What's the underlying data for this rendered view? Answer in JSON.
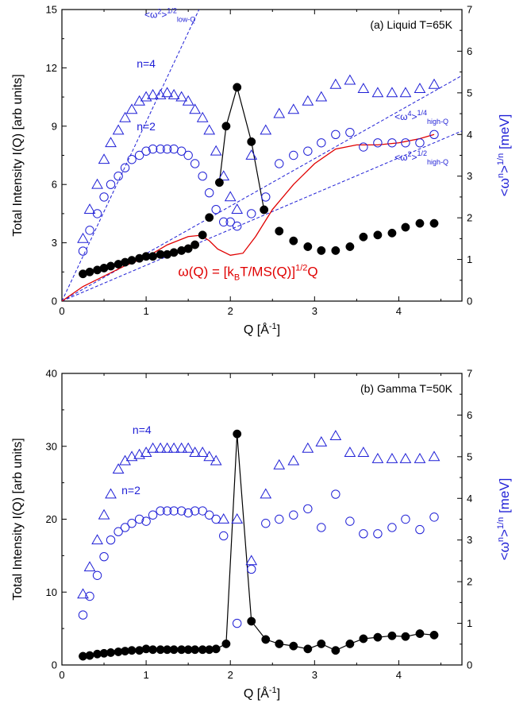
{
  "colors": {
    "black": "#000000",
    "blue": "#1f1fd6",
    "red": "#e00000"
  },
  "chart_data": [
    {
      "type": "scatter",
      "panel_label": "(a) Liquid T=65K",
      "xlabel": "Q [Å",
      "xlabel_sup": "-1",
      "xlabel_end": "]",
      "ylabel_left": "Total Intensity I(Q) [arb units]",
      "ylabel_right": {
        "pre": "<ω",
        "sup1": "n",
        "mid": ">",
        "sup2": "1/n",
        "post": "  [meV]"
      },
      "xlim": [
        0,
        4.75
      ],
      "ylim_left": [
        0,
        15
      ],
      "ylim_right": [
        0,
        7
      ],
      "xticks": [
        "0",
        "1",
        "2",
        "3",
        "4"
      ],
      "yticks_left": [
        "0",
        "3",
        "6",
        "9",
        "12",
        "15"
      ],
      "yticks_right": [
        "0",
        "1",
        "2",
        "3",
        "4",
        "5",
        "6",
        "7"
      ],
      "annotations": {
        "n4": "n=4",
        "n2": "n=2",
        "lowq": {
          "base": "<ω",
          "sup1": "2",
          "mid": ">",
          "sup2": "1/2",
          "sub": "low-Q"
        },
        "high4": {
          "base": "<ω",
          "sup1": "4",
          "mid": ">",
          "sup2": "1/4",
          "sub": "high-Q"
        },
        "high2": {
          "base": "<ω",
          "sup1": "2",
          "mid": ">",
          "sup2": "1/2",
          "sub": "high-Q"
        },
        "formula": {
          "a": "ω(Q) = [k",
          "sub": "B",
          "b": "T/MS(Q)]",
          "sup": "1/2",
          "c": "Q"
        }
      },
      "intensity": {
        "x": [
          0.25,
          0.33,
          0.42,
          0.5,
          0.58,
          0.67,
          0.75,
          0.83,
          0.92,
          1.0,
          1.08,
          1.17,
          1.25,
          1.33,
          1.42,
          1.5,
          1.58,
          1.67,
          1.75,
          1.87,
          1.95,
          2.08,
          2.25,
          2.4,
          2.58,
          2.75,
          2.92,
          3.08,
          3.25,
          3.42,
          3.58,
          3.75,
          3.92,
          4.08,
          4.25,
          4.42
        ],
        "y": [
          1.4,
          1.5,
          1.6,
          1.7,
          1.8,
          1.9,
          2.0,
          2.1,
          2.2,
          2.3,
          2.3,
          2.4,
          2.4,
          2.5,
          2.6,
          2.7,
          2.9,
          3.4,
          4.3,
          6.1,
          9.0,
          11.0,
          8.2,
          4.7,
          3.6,
          3.1,
          2.8,
          2.6,
          2.6,
          2.8,
          3.3,
          3.4,
          3.5,
          3.8,
          4.0,
          4.0
        ]
      },
      "n4": {
        "x": [
          0.25,
          0.33,
          0.42,
          0.5,
          0.58,
          0.67,
          0.75,
          0.83,
          0.92,
          1.0,
          1.08,
          1.17,
          1.25,
          1.33,
          1.42,
          1.5,
          1.58,
          1.67,
          1.75,
          1.83,
          1.92,
          2.0,
          2.08,
          2.25,
          2.42,
          2.58,
          2.75,
          2.92,
          3.08,
          3.25,
          3.42,
          3.58,
          3.75,
          3.92,
          4.08,
          4.25,
          4.42
        ],
        "y": [
          1.5,
          2.2,
          2.8,
          3.4,
          3.8,
          4.1,
          4.4,
          4.6,
          4.8,
          4.9,
          4.95,
          4.95,
          5.0,
          4.95,
          4.9,
          4.8,
          4.6,
          4.4,
          4.1,
          3.6,
          3.0,
          2.5,
          2.2,
          3.5,
          4.1,
          4.5,
          4.6,
          4.8,
          4.9,
          5.2,
          5.3,
          5.1,
          5.0,
          5.0,
          5.0,
          5.1,
          5.2
        ]
      },
      "n2": {
        "x": [
          0.25,
          0.33,
          0.42,
          0.5,
          0.58,
          0.67,
          0.75,
          0.83,
          0.92,
          1.0,
          1.08,
          1.17,
          1.25,
          1.33,
          1.42,
          1.5,
          1.58,
          1.67,
          1.75,
          1.83,
          1.92,
          2.0,
          2.08,
          2.25,
          2.42,
          2.58,
          2.75,
          2.92,
          3.08,
          3.25,
          3.42,
          3.58,
          3.75,
          3.92,
          4.08,
          4.25,
          4.42
        ],
        "y": [
          1.2,
          1.7,
          2.1,
          2.5,
          2.8,
          3.0,
          3.2,
          3.4,
          3.5,
          3.6,
          3.65,
          3.65,
          3.65,
          3.65,
          3.6,
          3.5,
          3.3,
          3.0,
          2.6,
          2.2,
          1.9,
          1.9,
          1.8,
          2.1,
          2.5,
          3.3,
          3.5,
          3.6,
          3.8,
          4.0,
          4.05,
          3.7,
          3.8,
          3.8,
          3.8,
          3.8,
          4.0
        ]
      },
      "guide_lines": [
        {
          "name": "low-Q",
          "slope_meV_per_invA": 4.3
        },
        {
          "name": "high-Q n=4",
          "slope_meV_per_invA": 1.14
        },
        {
          "name": "high-Q n=2",
          "slope_meV_per_invA": 0.86
        }
      ],
      "curve_red": {
        "x": [
          0.0,
          0.25,
          0.5,
          0.75,
          1.0,
          1.25,
          1.5,
          1.65,
          1.75,
          1.85,
          2.0,
          2.15,
          2.3,
          2.5,
          2.75,
          3.0,
          3.25,
          3.5,
          3.75,
          4.0,
          4.25,
          4.42
        ],
        "y": [
          0.0,
          0.35,
          0.6,
          0.85,
          1.05,
          1.35,
          1.55,
          1.58,
          1.45,
          1.25,
          1.1,
          1.15,
          1.55,
          2.2,
          2.8,
          3.3,
          3.65,
          3.75,
          3.75,
          3.8,
          3.9,
          4.0
        ]
      }
    },
    {
      "type": "scatter",
      "panel_label": "(b) Gamma T=50K",
      "xlabel": "Q [Å",
      "xlabel_sup": "-1",
      "xlabel_end": "]",
      "ylabel_left": "Total Intensity I(Q) [arb units]",
      "ylabel_right": {
        "pre": "<ω",
        "sup1": "n",
        "mid": ">",
        "sup2": "1/n",
        "post": "  [meV]"
      },
      "xlim": [
        0,
        4.75
      ],
      "ylim_left": [
        0,
        40
      ],
      "ylim_right": [
        0,
        7
      ],
      "xticks": [
        "0",
        "1",
        "2",
        "3",
        "4"
      ],
      "yticks_left": [
        "0",
        "10",
        "20",
        "30",
        "40"
      ],
      "yticks_right": [
        "0",
        "1",
        "2",
        "3",
        "4",
        "5",
        "6",
        "7"
      ],
      "annotations": {
        "n4": "n=4",
        "n2": "n=2"
      },
      "intensity": {
        "x": [
          0.25,
          0.33,
          0.42,
          0.5,
          0.58,
          0.67,
          0.75,
          0.83,
          0.92,
          1.0,
          1.08,
          1.17,
          1.25,
          1.33,
          1.42,
          1.5,
          1.58,
          1.67,
          1.75,
          1.83,
          1.95,
          2.08,
          2.25,
          2.42,
          2.58,
          2.75,
          2.92,
          3.08,
          3.25,
          3.42,
          3.58,
          3.75,
          3.92,
          4.08,
          4.25,
          4.42
        ],
        "y": [
          1.2,
          1.3,
          1.5,
          1.6,
          1.7,
          1.8,
          1.9,
          2.0,
          2.0,
          2.2,
          2.1,
          2.1,
          2.1,
          2.1,
          2.1,
          2.1,
          2.1,
          2.1,
          2.1,
          2.2,
          2.9,
          31.7,
          6.0,
          3.5,
          2.9,
          2.6,
          2.2,
          2.9,
          2.0,
          2.9,
          3.6,
          3.8,
          4.0,
          3.9,
          4.3,
          4.1
        ]
      },
      "n4": {
        "x": [
          0.25,
          0.33,
          0.42,
          0.5,
          0.58,
          0.67,
          0.75,
          0.83,
          0.92,
          1.0,
          1.08,
          1.17,
          1.25,
          1.33,
          1.42,
          1.5,
          1.58,
          1.67,
          1.75,
          1.83,
          1.92,
          2.08,
          2.25,
          2.42,
          2.58,
          2.75,
          2.92,
          3.08,
          3.25,
          3.42,
          3.58,
          3.75,
          3.92,
          4.08,
          4.25,
          4.42
        ],
        "y": [
          1.7,
          2.35,
          3.0,
          3.6,
          4.1,
          4.7,
          4.9,
          5.0,
          5.05,
          5.1,
          5.2,
          5.2,
          5.2,
          5.2,
          5.2,
          5.2,
          5.1,
          5.1,
          5.0,
          4.9,
          3.5,
          3.5,
          2.5,
          4.1,
          4.8,
          4.9,
          5.2,
          5.35,
          5.5,
          5.1,
          5.1,
          4.95,
          4.95,
          4.95,
          4.95,
          5.0
        ]
      },
      "n2": {
        "x": [
          0.25,
          0.33,
          0.42,
          0.5,
          0.58,
          0.67,
          0.75,
          0.83,
          0.92,
          1.0,
          1.08,
          1.17,
          1.25,
          1.33,
          1.42,
          1.5,
          1.58,
          1.67,
          1.75,
          1.83,
          1.92,
          2.08,
          2.25,
          2.42,
          2.58,
          2.75,
          2.92,
          3.08,
          3.25,
          3.42,
          3.58,
          3.75,
          3.92,
          4.08,
          4.25,
          4.42
        ],
        "y": [
          1.2,
          1.65,
          2.15,
          2.6,
          3.0,
          3.2,
          3.3,
          3.4,
          3.5,
          3.45,
          3.6,
          3.7,
          3.7,
          3.7,
          3.7,
          3.65,
          3.7,
          3.7,
          3.6,
          3.5,
          3.1,
          1.0,
          2.3,
          3.4,
          3.5,
          3.6,
          3.75,
          3.3,
          4.1,
          3.45,
          3.15,
          3.15,
          3.3,
          3.5,
          3.25,
          3.55
        ]
      }
    }
  ]
}
